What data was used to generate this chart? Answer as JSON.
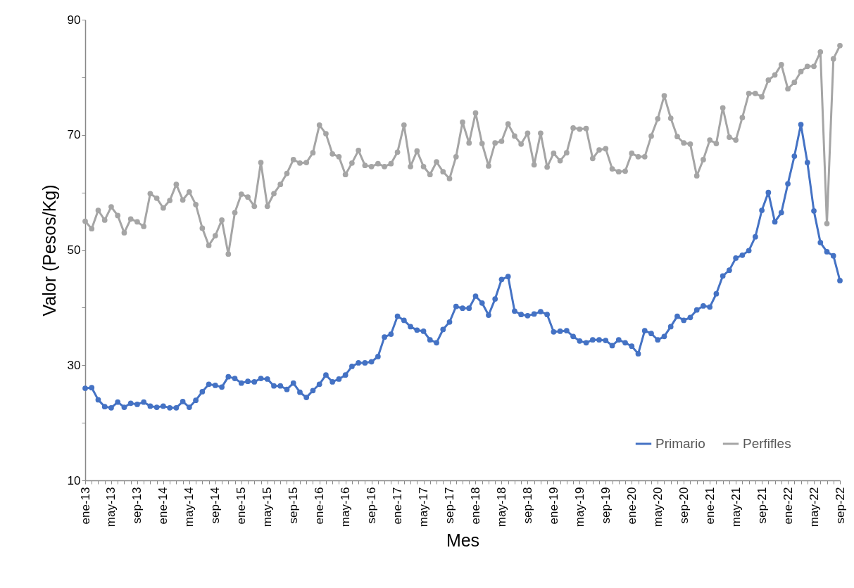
{
  "chart_data": {
    "type": "line",
    "xlabel": "Mes",
    "ylabel": "Valor (Pesos/Kg)",
    "categories": [
      "ene-13",
      null,
      null,
      null,
      "may-13",
      null,
      null,
      null,
      "sep-13",
      null,
      null,
      null,
      "ene-14",
      null,
      null,
      null,
      "may-14",
      null,
      null,
      null,
      "sep-14",
      null,
      null,
      null,
      "ene-15",
      null,
      null,
      null,
      "may-15",
      null,
      null,
      null,
      "sep-15",
      null,
      null,
      null,
      "ene-16",
      null,
      null,
      null,
      "may-16",
      null,
      null,
      null,
      "sep-16",
      null,
      null,
      null,
      "ene-17",
      null,
      null,
      null,
      "may-17",
      null,
      null,
      null,
      "sep-17",
      null,
      null,
      null,
      "ene-18",
      null,
      null,
      null,
      "may-18",
      null,
      null,
      null,
      "sep-18",
      null,
      null,
      null,
      "ene-19",
      null,
      null,
      null,
      "may-19",
      null,
      null,
      null,
      "sep-19",
      null,
      null,
      null,
      "ene-20",
      null,
      null,
      null,
      "may-20",
      null,
      null,
      null,
      "sep-20",
      null,
      null,
      null,
      "ene-21",
      null,
      null,
      null,
      "may-21",
      null,
      null,
      null,
      "sep-21",
      null,
      null,
      null,
      "ene-22",
      null,
      null,
      null,
      "may-22",
      null,
      null,
      null,
      "sep-22"
    ],
    "series": [
      {
        "name": "Primario",
        "color": "#4472c4",
        "values": [
          26.0,
          26.1,
          24.0,
          22.8,
          22.6,
          23.6,
          22.7,
          23.4,
          23.2,
          23.6,
          22.9,
          22.7,
          22.9,
          22.6,
          22.6,
          23.7,
          22.7,
          23.9,
          25.4,
          26.7,
          26.5,
          26.2,
          28.0,
          27.7,
          26.9,
          27.2,
          27.1,
          27.7,
          27.6,
          26.4,
          26.4,
          25.8,
          26.9,
          25.3,
          24.4,
          25.6,
          26.7,
          28.3,
          27.1,
          27.6,
          28.3,
          29.8,
          30.4,
          30.4,
          30.6,
          31.5,
          34.9,
          35.4,
          38.5,
          37.8,
          36.7,
          36.1,
          35.9,
          34.4,
          33.9,
          36.2,
          37.5,
          40.2,
          39.9,
          39.9,
          42.0,
          40.8,
          38.7,
          41.5,
          44.9,
          45.4,
          39.4,
          38.8,
          38.6,
          38.9,
          39.3,
          38.8,
          35.8,
          35.9,
          36.0,
          35.0,
          34.2,
          33.9,
          34.4,
          34.4,
          34.3,
          33.4,
          34.4,
          33.9,
          33.3,
          32.0,
          36.0,
          35.5,
          34.4,
          35.0,
          36.7,
          38.5,
          37.8,
          38.3,
          39.6,
          40.3,
          40.1,
          42.4,
          45.5,
          46.5,
          48.6,
          49.1,
          49.9,
          52.3,
          56.9,
          60.0,
          54.9,
          56.5,
          61.5,
          66.3,
          71.8,
          65.2,
          56.8,
          51.3,
          49.7,
          49.0,
          44.7
        ]
      },
      {
        "name": "Perfifles",
        "color": "#a5a5a5",
        "values": [
          55.0,
          53.7,
          56.9,
          55.2,
          57.5,
          56.0,
          53.0,
          55.4,
          54.9,
          54.1,
          59.8,
          59.0,
          57.3,
          58.6,
          61.4,
          58.7,
          60.1,
          57.9,
          53.8,
          50.8,
          52.5,
          55.2,
          49.3,
          56.5,
          59.7,
          59.2,
          57.6,
          65.2,
          57.6,
          59.8,
          61.4,
          63.3,
          65.7,
          65.1,
          65.2,
          66.9,
          71.7,
          70.2,
          66.7,
          66.2,
          63.1,
          65.1,
          67.3,
          64.7,
          64.5,
          65.0,
          64.5,
          65.0,
          67.0,
          71.7,
          64.5,
          67.2,
          64.5,
          63.1,
          65.3,
          63.6,
          62.4,
          66.2,
          72.2,
          68.6,
          73.8,
          68.5,
          64.6,
          68.6,
          68.9,
          71.9,
          69.8,
          68.4,
          70.3,
          64.8,
          70.3,
          64.4,
          66.8,
          65.5,
          66.9,
          71.2,
          71.0,
          71.1,
          65.9,
          67.4,
          67.6,
          64.1,
          63.6,
          63.7,
          66.8,
          66.2,
          66.2,
          69.8,
          72.8,
          76.8,
          72.9,
          69.7,
          68.6,
          68.4,
          62.9,
          65.7,
          69.1,
          68.5,
          74.7,
          69.6,
          69.1,
          73.0,
          77.2,
          77.2,
          76.6,
          79.5,
          80.4,
          82.2,
          78.0,
          79.1,
          81.0,
          81.9,
          81.9,
          84.4,
          54.6,
          83.2,
          85.5
        ]
      }
    ],
    "ylim": [
      10,
      90
    ],
    "yticks": [
      10,
      {
        "value": 20,
        "label": null
      },
      30,
      {
        "value": 40,
        "label": null
      },
      50,
      {
        "value": 60,
        "label": null
      },
      70,
      {
        "value": 80,
        "label": null
      },
      90
    ],
    "legend": "bottom right",
    "marker": "circle",
    "line_style": "solid"
  }
}
